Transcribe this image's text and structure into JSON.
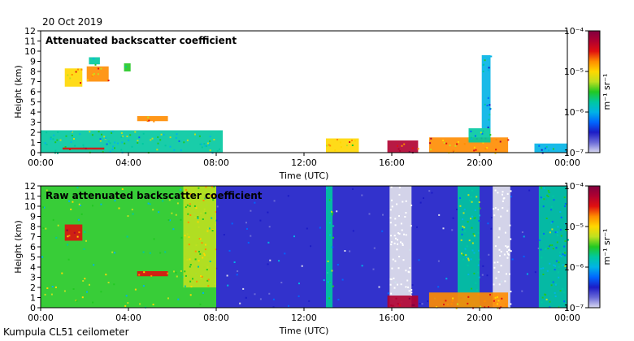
{
  "header": {
    "date": "20 Oct 2019"
  },
  "footer": {
    "site": "Kumpula CL51 ceilometer"
  },
  "colors": {
    "scale": [
      "#d9d9f0",
      "#6b6bd8",
      "#1c1cc6",
      "#0066ff",
      "#00b3e6",
      "#00c8a0",
      "#22c822",
      "#bfe020",
      "#ffd700",
      "#ff8c00",
      "#e01010",
      "#b00030",
      "#800040"
    ],
    "missing": "#e4e4ec",
    "frame": "#000000"
  },
  "chart_data": [
    {
      "type": "heatmap",
      "title": "Attenuated backscatter coefficient",
      "xlabel": "Time (UTC)",
      "ylabel": "Height (km)",
      "x_ticks": [
        "00:00",
        "04:00",
        "08:00",
        "12:00",
        "16:00",
        "20:00",
        "00:00"
      ],
      "y_ticks": [
        "0",
        "1",
        "2",
        "3",
        "4",
        "5",
        "6",
        "7",
        "8",
        "9",
        "10",
        "11",
        "12"
      ],
      "xlim_hours": [
        0,
        24
      ],
      "ylim_km": [
        0,
        12
      ],
      "colorbar": {
        "labels": [
          "10⁻⁴",
          "10⁻⁵",
          "10⁻⁶",
          "10⁻⁷"
        ],
        "unit": "m⁻¹ sr⁻¹",
        "log": true
      },
      "features": [
        {
          "from_h": 0.0,
          "to_h": 8.3,
          "base_km": 0.0,
          "top_km": 2.2,
          "level": 0.45
        },
        {
          "from_h": 1.0,
          "to_h": 2.9,
          "base_km": 0.3,
          "top_km": 0.5,
          "level": 0.85
        },
        {
          "from_h": 2.1,
          "to_h": 3.1,
          "base_km": 7.0,
          "top_km": 8.5,
          "level": 0.75
        },
        {
          "from_h": 1.1,
          "to_h": 1.9,
          "base_km": 6.5,
          "top_km": 8.3,
          "level": 0.7
        },
        {
          "from_h": 2.2,
          "to_h": 2.7,
          "base_km": 8.7,
          "top_km": 9.4,
          "level": 0.45
        },
        {
          "from_h": 3.8,
          "to_h": 4.1,
          "base_km": 8.0,
          "top_km": 8.8,
          "level": 0.5
        },
        {
          "from_h": 4.4,
          "to_h": 5.8,
          "base_km": 3.1,
          "top_km": 3.6,
          "level": 0.75
        },
        {
          "from_h": 13.0,
          "to_h": 14.5,
          "base_km": 0.0,
          "top_km": 1.4,
          "level": 0.7
        },
        {
          "from_h": 15.8,
          "to_h": 17.2,
          "base_km": 0.0,
          "top_km": 1.2,
          "level": 0.92
        },
        {
          "from_h": 17.7,
          "to_h": 21.3,
          "base_km": 0.0,
          "top_km": 1.5,
          "level": 0.75
        },
        {
          "from_h": 19.5,
          "to_h": 20.5,
          "base_km": 1.0,
          "top_km": 2.4,
          "level": 0.4
        },
        {
          "from_h": 20.1,
          "to_h": 20.5,
          "base_km": 2.4,
          "top_km": 9.6,
          "level": 0.3
        },
        {
          "from_h": 22.5,
          "to_h": 24.0,
          "base_km": 0.0,
          "top_km": 0.9,
          "level": 0.35
        }
      ]
    },
    {
      "type": "heatmap",
      "title": "Raw attenuated backscatter coefficient",
      "xlabel": "Time (UTC)",
      "ylabel": "Height (km)",
      "x_ticks": [
        "00:00",
        "04:00",
        "08:00",
        "12:00",
        "16:00",
        "20:00",
        "00:00"
      ],
      "y_ticks": [
        "0",
        "1",
        "2",
        "3",
        "4",
        "5",
        "6",
        "7",
        "8",
        "9",
        "10",
        "11",
        "12"
      ],
      "xlim_hours": [
        0,
        24
      ],
      "ylim_km": [
        0,
        12
      ],
      "colorbar": {
        "labels": [
          "10⁻⁴",
          "10⁻⁵",
          "10⁻⁶",
          "10⁻⁷"
        ],
        "unit": "m⁻¹ sr⁻¹",
        "log": true
      },
      "features": [
        {
          "from_h": 0.0,
          "to_h": 8.0,
          "base_km": 0.0,
          "top_km": 12.0,
          "level": 0.5
        },
        {
          "from_h": 6.5,
          "to_h": 8.0,
          "base_km": 2.0,
          "top_km": 12.0,
          "level": 0.62
        },
        {
          "from_h": 8.0,
          "to_h": 24.0,
          "base_km": 0.0,
          "top_km": 12.0,
          "level": 0.18
        },
        {
          "from_h": 15.9,
          "to_h": 16.9,
          "base_km": 0.0,
          "top_km": 12.0,
          "level": 0.0
        },
        {
          "from_h": 20.6,
          "to_h": 21.4,
          "base_km": 0.0,
          "top_km": 12.0,
          "level": 0.0
        },
        {
          "from_h": 13.0,
          "to_h": 13.3,
          "base_km": 0.0,
          "top_km": 12.0,
          "level": 0.45
        },
        {
          "from_h": 19.0,
          "to_h": 20.0,
          "base_km": 0.0,
          "top_km": 12.0,
          "level": 0.45
        },
        {
          "from_h": 22.7,
          "to_h": 24.0,
          "base_km": 0.0,
          "top_km": 12.0,
          "level": 0.4
        },
        {
          "from_h": 1.1,
          "to_h": 1.9,
          "base_km": 6.6,
          "top_km": 8.2,
          "level": 0.8
        },
        {
          "from_h": 4.4,
          "to_h": 5.8,
          "base_km": 3.1,
          "top_km": 3.6,
          "level": 0.8
        },
        {
          "from_h": 15.8,
          "to_h": 17.2,
          "base_km": 0.0,
          "top_km": 1.2,
          "level": 0.92
        },
        {
          "from_h": 17.7,
          "to_h": 21.3,
          "base_km": 0.0,
          "top_km": 1.5,
          "level": 0.75
        }
      ]
    }
  ]
}
